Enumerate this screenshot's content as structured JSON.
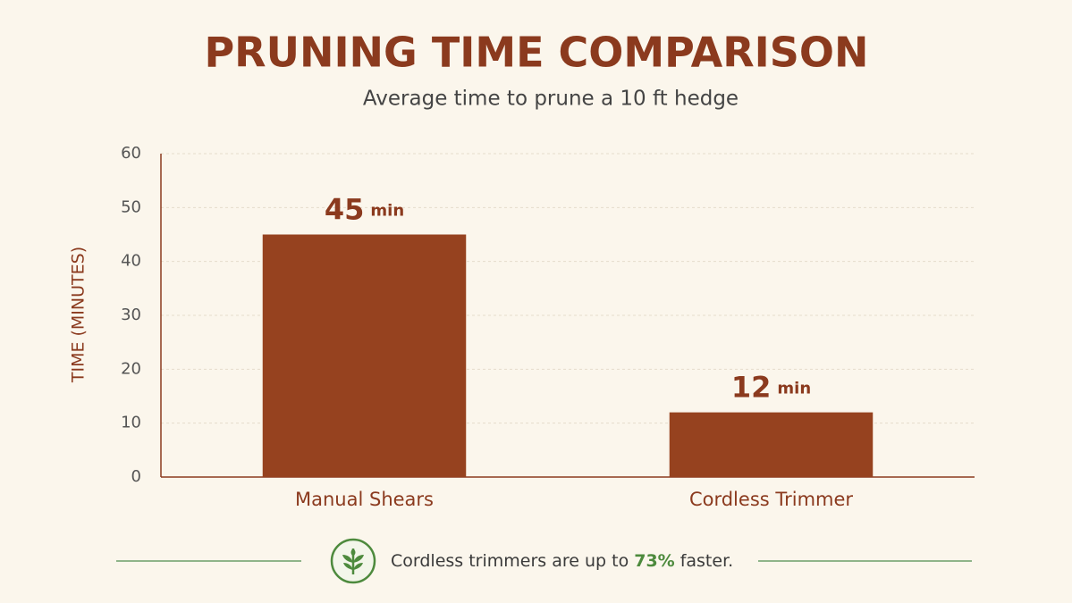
{
  "chart_data": {
    "type": "bar",
    "title": "PRUNING TIME COMPARISON",
    "subtitle": "Average time to prune a 10 ft hedge",
    "y_label": "TIME (MINUTES)",
    "categories": [
      "Manual Shears",
      "Cordless Trimmer"
    ],
    "values": [
      45,
      12
    ],
    "value_labels": [
      "45 min",
      "12 min"
    ],
    "color": "#96421f",
    "ylim": [
      0,
      60
    ],
    "yticks": [
      0,
      10,
      20,
      30,
      40,
      50,
      60
    ],
    "grid": true,
    "annotation": {
      "before": "Cordless trimmers are up to",
      "highlight": "73%",
      "after": "faster."
    }
  }
}
